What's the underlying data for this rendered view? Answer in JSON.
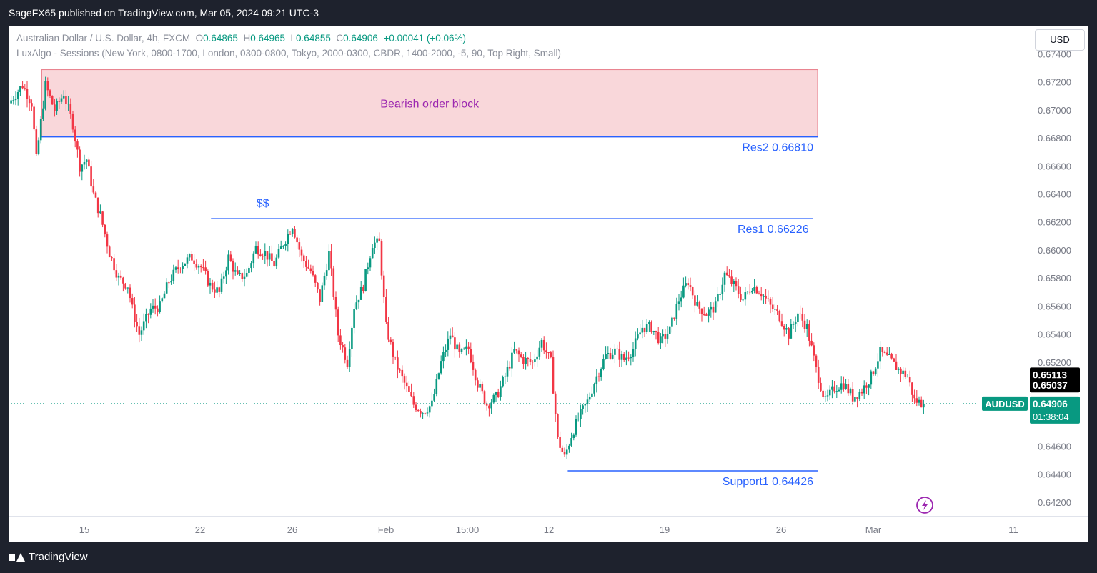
{
  "header": {
    "published": "SageFX65 published on TradingView.com, Mar 05, 2024 09:21 UTC-3"
  },
  "legend": {
    "symbol": "Australian Dollar / U.S. Dollar, 4h, FXCM",
    "o_label": "O",
    "open": "0.64865",
    "h_label": "H",
    "high": "0.64965",
    "l_label": "L",
    "low": "0.64855",
    "c_label": "C",
    "close": "0.64906",
    "change": "+0.00041 (+0.06%)",
    "indicator": "LuxAlgo - Sessions (New York, 0800-1700, London, 0300-0800, Tokyo, 2000-0300, CBDR, 1400-2000, -5, 90, Top Right, Small)"
  },
  "currency_button": "USD",
  "footer": {
    "brand": "TradingView"
  },
  "colors": {
    "up": "#089981",
    "down": "#f23645",
    "line": "#2962ff",
    "block_fill": "#f9d7da",
    "block_text": "#9c27b0"
  },
  "chart_data": {
    "type": "candlestick",
    "ylim": [
      0.641,
      0.675
    ],
    "yticks": [
      "0.67400",
      "0.67200",
      "0.67000",
      "0.66800",
      "0.66600",
      "0.66400",
      "0.66200",
      "0.66000",
      "0.65800",
      "0.65600",
      "0.65400",
      "0.65200",
      "0.64600",
      "0.64400",
      "0.64200"
    ],
    "xticks": [
      "15",
      "22",
      "26",
      "Feb",
      "15:00",
      "12",
      "19",
      "26",
      "Mar",
      "11"
    ],
    "series_waypoints": [
      [
        0,
        0.6705
      ],
      [
        6,
        0.6718
      ],
      [
        10,
        0.6705
      ],
      [
        12,
        0.6665
      ],
      [
        16,
        0.6718
      ],
      [
        20,
        0.67
      ],
      [
        24,
        0.6712
      ],
      [
        28,
        0.669
      ],
      [
        31,
        0.666
      ],
      [
        34,
        0.6665
      ],
      [
        37,
        0.664
      ],
      [
        40,
        0.6625
      ],
      [
        44,
        0.6598
      ],
      [
        48,
        0.658
      ],
      [
        52,
        0.6575
      ],
      [
        54,
        0.6558
      ],
      [
        57,
        0.654
      ],
      [
        62,
        0.6558
      ],
      [
        66,
        0.656
      ],
      [
        70,
        0.6578
      ],
      [
        75,
        0.659
      ],
      [
        80,
        0.6595
      ],
      [
        84,
        0.6588
      ],
      [
        88,
        0.6575
      ],
      [
        92,
        0.657
      ],
      [
        96,
        0.6595
      ],
      [
        100,
        0.658
      ],
      [
        104,
        0.6583
      ],
      [
        108,
        0.6602
      ],
      [
        112,
        0.6598
      ],
      [
        116,
        0.659
      ],
      [
        120,
        0.6605
      ],
      [
        124,
        0.6618
      ],
      [
        128,
        0.6595
      ],
      [
        132,
        0.6585
      ],
      [
        136,
        0.6565
      ],
      [
        140,
        0.6598
      ],
      [
        144,
        0.654
      ],
      [
        148,
        0.652
      ],
      [
        151,
        0.656
      ],
      [
        155,
        0.6575
      ],
      [
        159,
        0.6605
      ],
      [
        162,
        0.6605
      ],
      [
        165,
        0.6545
      ],
      [
        169,
        0.652
      ],
      [
        173,
        0.6505
      ],
      [
        177,
        0.649
      ],
      [
        181,
        0.6485
      ],
      [
        185,
        0.649
      ],
      [
        189,
        0.652
      ],
      [
        193,
        0.654
      ],
      [
        197,
        0.6525
      ],
      [
        201,
        0.653
      ],
      [
        205,
        0.6505
      ],
      [
        209,
        0.649
      ],
      [
        213,
        0.6495
      ],
      [
        217,
        0.651
      ],
      [
        221,
        0.6528
      ],
      [
        225,
        0.6522
      ],
      [
        229,
        0.652
      ],
      [
        233,
        0.6535
      ],
      [
        237,
        0.652
      ],
      [
        240,
        0.6465
      ],
      [
        243,
        0.6452
      ],
      [
        246,
        0.6468
      ],
      [
        249,
        0.648
      ],
      [
        253,
        0.6492
      ],
      [
        257,
        0.651
      ],
      [
        261,
        0.6525
      ],
      [
        265,
        0.6528
      ],
      [
        269,
        0.6522
      ],
      [
        273,
        0.653
      ],
      [
        277,
        0.6545
      ],
      [
        281,
        0.6545
      ],
      [
        285,
        0.6535
      ],
      [
        289,
        0.6543
      ],
      [
        293,
        0.6565
      ],
      [
        297,
        0.6578
      ],
      [
        301,
        0.656
      ],
      [
        305,
        0.6555
      ],
      [
        309,
        0.656
      ],
      [
        313,
        0.6583
      ],
      [
        317,
        0.6575
      ],
      [
        321,
        0.6565
      ],
      [
        325,
        0.6575
      ],
      [
        329,
        0.657
      ],
      [
        333,
        0.656
      ],
      [
        337,
        0.6553
      ],
      [
        341,
        0.654
      ],
      [
        345,
        0.6555
      ],
      [
        349,
        0.6545
      ],
      [
        353,
        0.6515
      ],
      [
        357,
        0.6492
      ],
      [
        361,
        0.6502
      ],
      [
        365,
        0.6505
      ],
      [
        369,
        0.6495
      ],
      [
        373,
        0.65
      ],
      [
        377,
        0.651
      ],
      [
        381,
        0.6527
      ],
      [
        385,
        0.6522
      ],
      [
        389,
        0.6515
      ],
      [
        393,
        0.651
      ],
      [
        396,
        0.6493
      ],
      [
        399,
        0.6491
      ]
    ],
    "annotations": [
      {
        "type": "zone",
        "label": "Bearish order block",
        "y_top": 0.6729,
        "y_bottom": 0.6681,
        "x_start": 14,
        "x_end": 352
      },
      {
        "type": "level",
        "label": "Res2 0.66810",
        "y": 0.6681,
        "x_start": 14,
        "x_end": 352
      },
      {
        "type": "level",
        "label": "Res1 0.66226",
        "y": 0.66226,
        "x_start": 88,
        "x_end": 350
      },
      {
        "type": "text",
        "label": "$$",
        "x": 110,
        "y": 0.6629
      },
      {
        "type": "level",
        "label": "Support1  0.64426",
        "y": 0.64426,
        "x_start": 244,
        "x_end": 352
      }
    ],
    "price_labels": [
      {
        "label": "0.65113",
        "y": 0.65113,
        "kind": "black"
      },
      {
        "label": "0.65037",
        "y": 0.65037,
        "kind": "black"
      },
      {
        "label": "0.64906",
        "sub": "01:38:04",
        "y": 0.64906,
        "kind": "last"
      }
    ],
    "last_price_tag": "AUDUSD"
  }
}
